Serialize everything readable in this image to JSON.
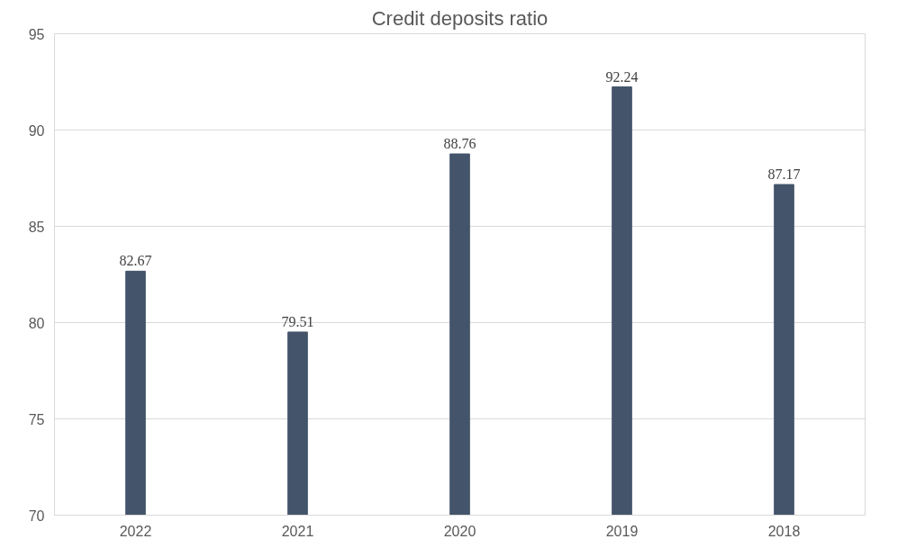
{
  "chart_data": {
    "type": "bar",
    "title": "Credit deposits ratio",
    "categories": [
      "2022",
      "2021",
      "2020",
      "2019",
      "2018"
    ],
    "values": [
      82.67,
      79.51,
      88.76,
      92.24,
      87.17
    ],
    "color": "#44546a",
    "ylim": [
      70,
      95
    ],
    "yticks": [
      70,
      75,
      80,
      85,
      90,
      95
    ],
    "grid": "y",
    "data_labels": true
  }
}
